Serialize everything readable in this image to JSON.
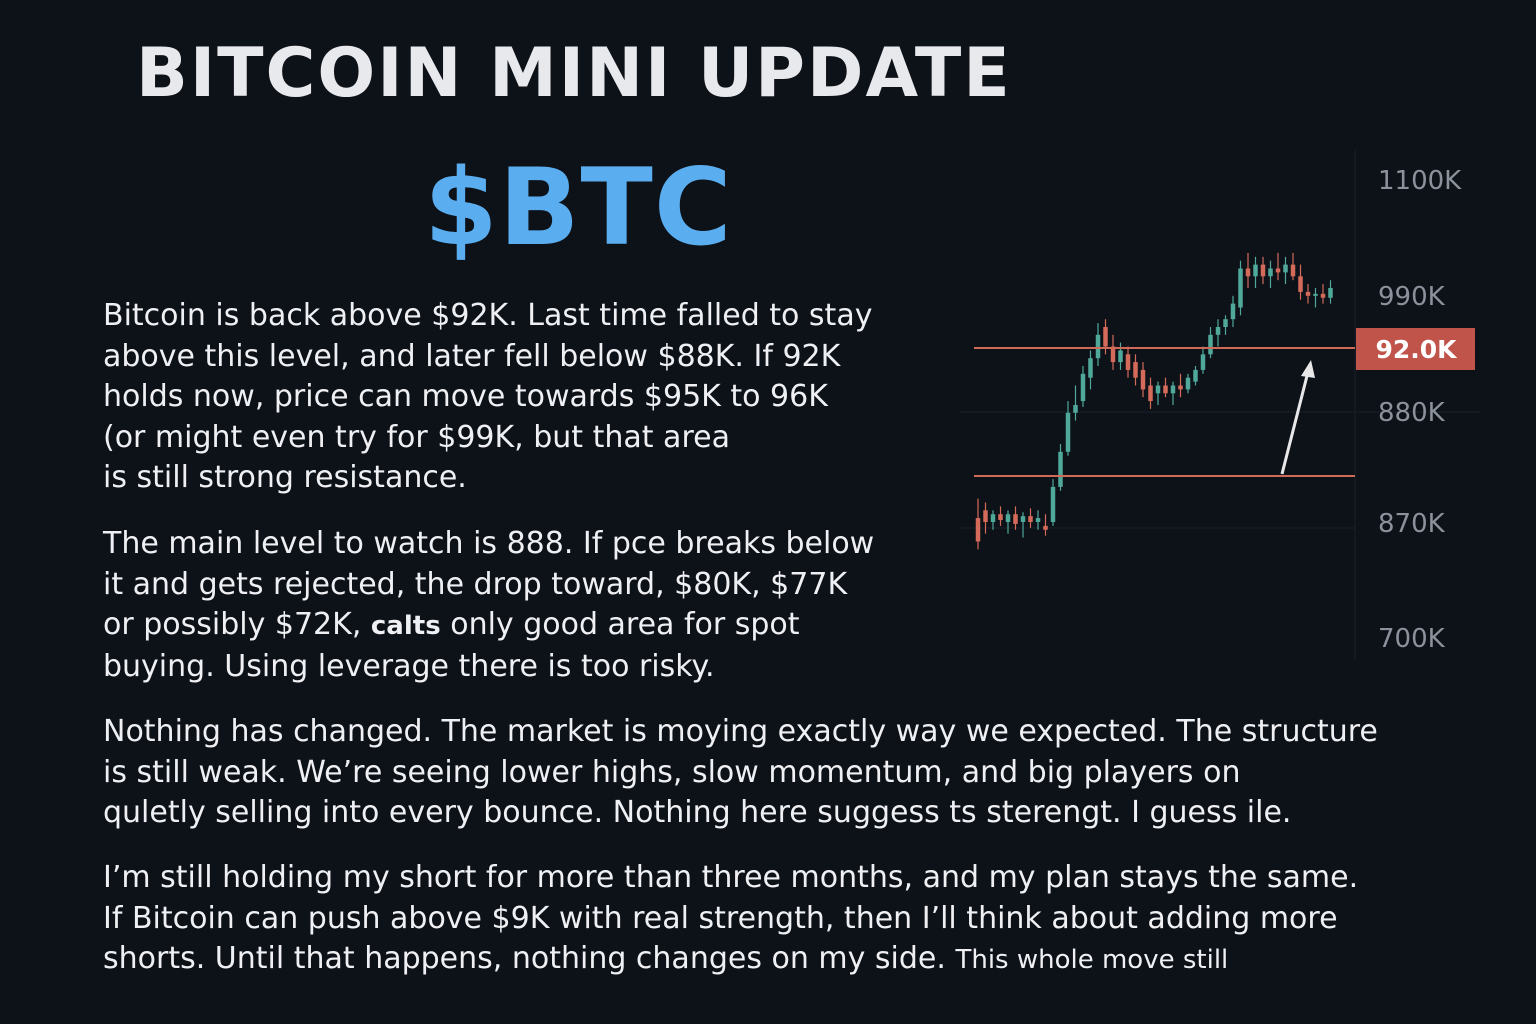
{
  "header": {
    "title": "BITCOIN MINI UPDATE",
    "ticker": "$BTC"
  },
  "paragraphs": {
    "p1": [
      "Bitcoin is back above $92K. Last time falled to stay",
      "above this level, and later fell below $88K. If 92K",
      "holds now, price can move towards $95K to 96K",
      "(or might even try for $99K, but that area",
      "is still strong resistance."
    ],
    "p2": {
      "l1": "The main level to watch is 888. If pce breaks below",
      "l2": "it and gets rejected, the drop toward,  $80K, $77K",
      "l3a": "or possibly $72K, ",
      "l3b": "calts",
      "l3c": "  only good area for spot",
      "l4": "buying. Using leverage there is too risky."
    },
    "p3": [
      "Nothing has changed. The market is moying exactly way we expected. The structure",
      "is still weak. We’re seeing lower highs, slow momentum, and big players on",
      "quletly selling into every bounce. Nothing here suggess ts sterengt. I guess ile."
    ],
    "p4": {
      "l1": "I’m still holding my short for more than three months, and my plan stays the same.",
      "l2": "If Bitcoin can push above $9K with real strength, then I’ll think about adding more",
      "l3a": "shorts. Until that happens, nothing changes on my side. ",
      "l3b": "This whole move still"
    }
  },
  "chart_data": {
    "type": "candlestick",
    "y_tick_labels": [
      "1100K",
      "990K",
      "880K",
      "870K",
      "700K"
    ],
    "current_price_label": "92.0K",
    "levels": [
      "92.0K",
      "support"
    ],
    "colors": {
      "up": "#4fa89a",
      "down": "#d46a5a",
      "level_line": "#d06a58",
      "price_tag_bg": "#c0544a",
      "arrow": "#e8e8e8"
    },
    "candles": [
      {
        "o": 0.42,
        "h": 0.52,
        "l": 0.26,
        "c": 0.3
      },
      {
        "o": 0.46,
        "h": 0.5,
        "l": 0.34,
        "c": 0.4
      },
      {
        "o": 0.4,
        "h": 0.46,
        "l": 0.36,
        "c": 0.44
      },
      {
        "o": 0.44,
        "h": 0.48,
        "l": 0.38,
        "c": 0.41
      },
      {
        "o": 0.4,
        "h": 0.46,
        "l": 0.34,
        "c": 0.44
      },
      {
        "o": 0.44,
        "h": 0.48,
        "l": 0.36,
        "c": 0.39
      },
      {
        "o": 0.4,
        "h": 0.45,
        "l": 0.32,
        "c": 0.43
      },
      {
        "o": 0.43,
        "h": 0.47,
        "l": 0.37,
        "c": 0.4
      },
      {
        "o": 0.4,
        "h": 0.46,
        "l": 0.36,
        "c": 0.42
      },
      {
        "o": 0.38,
        "h": 0.44,
        "l": 0.33,
        "c": 0.36
      },
      {
        "o": 0.4,
        "h": 0.62,
        "l": 0.38,
        "c": 0.58
      },
      {
        "o": 0.58,
        "h": 0.8,
        "l": 0.56,
        "c": 0.76
      },
      {
        "o": 0.76,
        "h": 1.02,
        "l": 0.74,
        "c": 0.96
      },
      {
        "o": 0.96,
        "h": 1.1,
        "l": 0.92,
        "c": 1.0
      },
      {
        "o": 1.02,
        "h": 1.2,
        "l": 0.99,
        "c": 1.16
      },
      {
        "o": 1.14,
        "h": 1.28,
        "l": 1.08,
        "c": 1.24
      },
      {
        "o": 1.24,
        "h": 1.42,
        "l": 1.2,
        "c": 1.36
      },
      {
        "o": 1.4,
        "h": 1.44,
        "l": 1.26,
        "c": 1.3
      },
      {
        "o": 1.3,
        "h": 1.36,
        "l": 1.18,
        "c": 1.22
      },
      {
        "o": 1.22,
        "h": 1.32,
        "l": 1.18,
        "c": 1.28
      },
      {
        "o": 1.26,
        "h": 1.3,
        "l": 1.14,
        "c": 1.18
      },
      {
        "o": 1.22,
        "h": 1.26,
        "l": 1.1,
        "c": 1.14
      },
      {
        "o": 1.18,
        "h": 1.22,
        "l": 1.04,
        "c": 1.08
      },
      {
        "o": 1.1,
        "h": 1.14,
        "l": 0.98,
        "c": 1.02
      },
      {
        "o": 1.06,
        "h": 1.12,
        "l": 1.0,
        "c": 1.1
      },
      {
        "o": 1.1,
        "h": 1.14,
        "l": 1.04,
        "c": 1.06
      },
      {
        "o": 1.06,
        "h": 1.12,
        "l": 1.0,
        "c": 1.1
      },
      {
        "o": 1.1,
        "h": 1.16,
        "l": 1.04,
        "c": 1.08
      },
      {
        "o": 1.08,
        "h": 1.16,
        "l": 1.06,
        "c": 1.14
      },
      {
        "o": 1.12,
        "h": 1.2,
        "l": 1.1,
        "c": 1.18
      },
      {
        "o": 1.18,
        "h": 1.3,
        "l": 1.16,
        "c": 1.26
      },
      {
        "o": 1.26,
        "h": 1.4,
        "l": 1.24,
        "c": 1.36
      },
      {
        "o": 1.36,
        "h": 1.44,
        "l": 1.3,
        "c": 1.4
      },
      {
        "o": 1.4,
        "h": 1.46,
        "l": 1.36,
        "c": 1.44
      },
      {
        "o": 1.44,
        "h": 1.56,
        "l": 1.4,
        "c": 1.52
      },
      {
        "o": 1.5,
        "h": 1.74,
        "l": 1.46,
        "c": 1.7
      },
      {
        "o": 1.7,
        "h": 1.78,
        "l": 1.6,
        "c": 1.66
      },
      {
        "o": 1.66,
        "h": 1.76,
        "l": 1.6,
        "c": 1.72
      },
      {
        "o": 1.72,
        "h": 1.76,
        "l": 1.62,
        "c": 1.66
      },
      {
        "o": 1.66,
        "h": 1.74,
        "l": 1.6,
        "c": 1.7
      },
      {
        "o": 1.7,
        "h": 1.78,
        "l": 1.64,
        "c": 1.68
      },
      {
        "o": 1.68,
        "h": 1.76,
        "l": 1.62,
        "c": 1.72
      },
      {
        "o": 1.72,
        "h": 1.78,
        "l": 1.64,
        "c": 1.66
      },
      {
        "o": 1.66,
        "h": 1.72,
        "l": 1.54,
        "c": 1.58
      },
      {
        "o": 1.58,
        "h": 1.62,
        "l": 1.52,
        "c": 1.56
      },
      {
        "o": 1.56,
        "h": 1.6,
        "l": 1.5,
        "c": 1.57
      },
      {
        "o": 1.57,
        "h": 1.62,
        "l": 1.52,
        "c": 1.55
      },
      {
        "o": 1.55,
        "h": 1.64,
        "l": 1.52,
        "c": 1.6
      }
    ]
  }
}
